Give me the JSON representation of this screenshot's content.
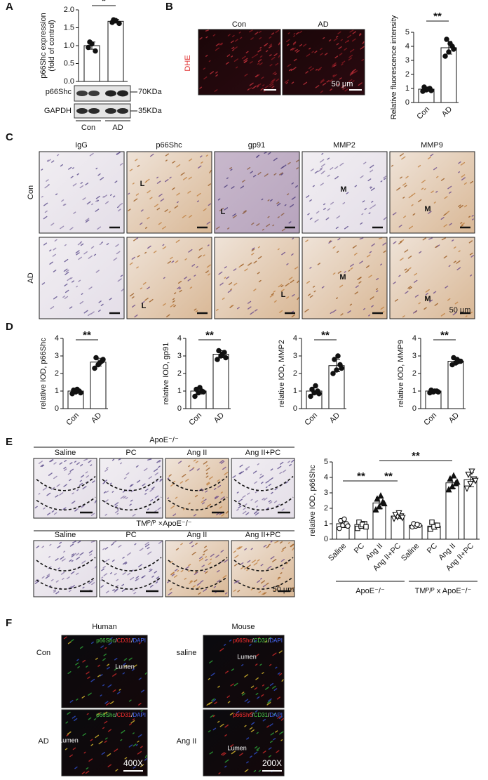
{
  "figure": {
    "panel_labels": [
      "A",
      "B",
      "C",
      "D",
      "E",
      "F"
    ],
    "A": {
      "blot_rows": [
        {
          "name": "p66Shc",
          "size": "70KDa"
        },
        {
          "name": "GAPDH",
          "size": "35KDa"
        }
      ]
    },
    "B": {
      "columns": [
        "Con",
        "AD"
      ],
      "stain": "DHE",
      "scale": "50 μm"
    },
    "C": {
      "columns": [
        "IgG",
        "p66Shc",
        "gp91",
        "MMP2",
        "MMP9"
      ],
      "rows": [
        "Con",
        "AD"
      ],
      "tags": [
        "L",
        "L",
        "M",
        "M",
        "L",
        "L",
        "M",
        "M"
      ],
      "scale": "50 μm"
    },
    "E": {
      "groups": [
        {
          "title": "ApoE⁻/⁻",
          "columns": [
            "Saline",
            "PC",
            "Ang II",
            "Ang II+PC"
          ]
        },
        {
          "title": "TMᴾ/ᴾ ×ApoE⁻/⁻",
          "columns": [
            "Saline",
            "PC",
            "Ang II",
            "Ang II+PC"
          ]
        }
      ],
      "scale": "50 μm"
    },
    "F": {
      "columns": [
        "Human",
        "Mouse"
      ],
      "rows": [
        "Con",
        "AD",
        "saline",
        "Ang II"
      ],
      "lumen": [
        "Lumen",
        "Lumen",
        "Lumen",
        "Lumen"
      ],
      "stain_human": [
        {
          "text": "p66Shc",
          "color": "#4cd14c"
        },
        {
          "text": "/",
          "color": "#ffffff"
        },
        {
          "text": "CD31",
          "color": "#ff3030"
        },
        {
          "text": "/",
          "color": "#ffffff"
        },
        {
          "text": "DAPI",
          "color": "#4a6cff"
        }
      ],
      "stain_mouse": [
        {
          "text": "p66Shc",
          "color": "#ff3030"
        },
        {
          "text": "/",
          "color": "#ffffff"
        },
        {
          "text": "CD31",
          "color": "#4cd14c"
        },
        {
          "text": "/",
          "color": "#ffffff"
        },
        {
          "text": "DAPI",
          "color": "#4a6cff"
        }
      ],
      "magnification": [
        "400X",
        "200X"
      ]
    }
  },
  "chart_data": [
    {
      "type": "bar",
      "ylabel": [
        "p66Shc expression",
        "(fold of control)"
      ],
      "categories": [
        "Con",
        "AD"
      ],
      "values": [
        1.0,
        1.68
      ],
      "errors": [
        0.1,
        0.05
      ],
      "points": [
        [
          0.95,
          1.05,
          0.85,
          1.1
        ],
        [
          1.65,
          1.7,
          1.62,
          1.72
        ]
      ],
      "ylim": [
        0,
        2
      ],
      "yticks": [
        {
          "value": 0,
          "label": "0.0"
        },
        {
          "value": 0.5,
          "label": "0.5"
        },
        {
          "value": 1,
          "label": "1.0"
        },
        {
          "value": 1.5,
          "label": "1.5"
        },
        {
          "value": 2,
          "label": "2.0"
        }
      ],
      "annotations": [
        "*"
      ],
      "color": "#ffffff"
    },
    {
      "type": "bar",
      "ylabel": [
        "Relative fluorescence intensity"
      ],
      "categories": [
        "Con",
        "AD"
      ],
      "values": [
        0.95,
        3.9
      ],
      "errors": [
        0.13,
        0.45
      ],
      "points": [
        [
          0.8,
          0.9,
          1.0,
          1.1,
          0.95,
          0.85
        ],
        [
          3.3,
          3.6,
          4.0,
          4.5,
          4.2,
          3.8
        ]
      ],
      "ylim": [
        0,
        5
      ],
      "yticks": [
        0,
        1,
        2,
        3,
        4,
        5
      ],
      "annotations": [
        "**"
      ],
      "color": "#ffffff"
    },
    {
      "type": "bar",
      "ylabel": [
        "relative IOD, p66Shc"
      ],
      "categories": [
        "Con",
        "AD"
      ],
      "values": [
        1.0,
        2.65
      ],
      "errors": [
        0.1,
        0.22
      ],
      "points": [
        [
          0.85,
          0.95,
          1.0,
          1.05,
          1.1,
          0.9
        ],
        [
          2.3,
          2.5,
          2.7,
          2.9,
          2.6,
          2.8
        ]
      ],
      "ylim": [
        0,
        4
      ],
      "yticks": [
        0,
        1,
        2,
        3,
        4
      ],
      "annotations": [
        "**"
      ],
      "color": "#ffffff"
    },
    {
      "type": "bar",
      "ylabel": [
        "relative IOD, gp91"
      ],
      "categories": [
        "Con",
        "AD"
      ],
      "values": [
        1.0,
        3.1
      ],
      "errors": [
        0.17,
        0.2
      ],
      "points": [
        [
          0.7,
          0.9,
          1.0,
          1.1,
          1.2,
          0.95
        ],
        [
          2.8,
          3.0,
          3.2,
          3.3,
          3.1,
          2.9
        ]
      ],
      "ylim": [
        0,
        4
      ],
      "yticks": [
        0,
        1,
        2,
        3,
        4
      ],
      "annotations": [
        "**"
      ],
      "color": "#ffffff"
    },
    {
      "type": "bar",
      "ylabel": [
        "relative IOD, MMP2"
      ],
      "categories": [
        "Con",
        "AD"
      ],
      "values": [
        1.0,
        2.45
      ],
      "errors": [
        0.2,
        0.35
      ],
      "points": [
        [
          0.7,
          0.9,
          1.0,
          1.1,
          1.3,
          0.85
        ],
        [
          2.0,
          2.2,
          2.5,
          2.8,
          3.0,
          2.3
        ]
      ],
      "ylim": [
        0,
        4
      ],
      "yticks": [
        0,
        1,
        2,
        3,
        4
      ],
      "annotations": [
        "**"
      ],
      "color": "#ffffff"
    },
    {
      "type": "bar",
      "ylabel": [
        "relative IOD, MMP9"
      ],
      "categories": [
        "Con",
        "AD"
      ],
      "values": [
        1.0,
        2.7
      ],
      "errors": [
        0.05,
        0.15
      ],
      "points": [
        [
          0.9,
          0.95,
          1.0,
          1.05,
          1.0,
          0.95
        ],
        [
          2.5,
          2.6,
          2.7,
          2.9,
          2.8,
          2.7
        ]
      ],
      "ylim": [
        0,
        4
      ],
      "yticks": [
        0,
        1,
        2,
        3,
        4
      ],
      "annotations": [
        "**"
      ],
      "color": "#ffffff"
    },
    {
      "type": "bar",
      "ylabel": [
        "relative IOD, p66Shc"
      ],
      "categories": [
        "Saline",
        "PC",
        "Ang II",
        "Ang II+PC",
        "Saline",
        "PC",
        "Ang II",
        "Ang II+PC"
      ],
      "values": [
        1.0,
        0.95,
        2.35,
        1.5,
        0.9,
        0.85,
        3.65,
        3.85
      ],
      "errors": [
        0.25,
        0.2,
        0.35,
        0.15,
        0.1,
        0.2,
        0.35,
        0.45
      ],
      "points": [
        [
          0.7,
          0.9,
          1.0,
          1.2,
          1.3,
          0.85
        ],
        [
          0.7,
          0.85,
          1.0,
          1.1,
          0.95,
          0.8
        ],
        [
          1.9,
          2.1,
          2.4,
          2.6,
          2.8,
          2.3
        ],
        [
          1.35,
          1.45,
          1.5,
          1.6,
          1.7,
          1.4
        ],
        [
          0.8,
          0.85,
          0.9,
          1.0,
          0.95
        ],
        [
          0.65,
          0.8,
          0.9,
          1.1
        ],
        [
          3.2,
          3.4,
          3.6,
          3.9,
          4.1,
          3.7
        ],
        [
          3.3,
          3.6,
          3.9,
          4.2,
          4.4,
          3.8
        ]
      ],
      "markers": [
        "circle",
        "square",
        "triangle",
        "triangle-down",
        "circle",
        "square",
        "triangle",
        "triangle-down"
      ],
      "ylim": [
        0,
        5
      ],
      "yticks": [
        0,
        1,
        2,
        3,
        4,
        5
      ],
      "annotations": [
        "**",
        "**",
        "**"
      ],
      "group_labels": [
        "ApoE⁻/⁻",
        "TMᴾ/ᴾ x ApoE⁻/⁻"
      ],
      "color": "#ffffff"
    }
  ]
}
